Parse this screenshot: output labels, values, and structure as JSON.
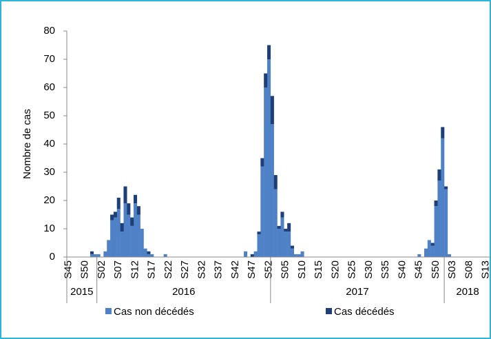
{
  "chart_data": {
    "type": "stacked_bar",
    "ylabel": "Nombre de cas",
    "ylim": [
      0,
      80
    ],
    "yticks": [
      0,
      10,
      20,
      30,
      40,
      50,
      60,
      70,
      80
    ],
    "categories": [
      "S45",
      null,
      null,
      null,
      null,
      "S50",
      null,
      null,
      null,
      null,
      "S02",
      null,
      null,
      null,
      null,
      "S07",
      null,
      null,
      null,
      null,
      "S12",
      null,
      null,
      null,
      null,
      "S17",
      null,
      null,
      null,
      null,
      "S22",
      null,
      null,
      null,
      null,
      "S27",
      null,
      null,
      null,
      null,
      "S32",
      null,
      null,
      null,
      null,
      "S37",
      null,
      null,
      null,
      null,
      "S42",
      null,
      null,
      null,
      null,
      "S47",
      null,
      null,
      null,
      null,
      "S52",
      null,
      null,
      null,
      null,
      "S05",
      null,
      null,
      null,
      null,
      "S10",
      null,
      null,
      null,
      null,
      "S15",
      null,
      null,
      null,
      null,
      "S20",
      null,
      null,
      null,
      null,
      "S25",
      null,
      null,
      null,
      null,
      "S30",
      null,
      null,
      null,
      null,
      "S35",
      null,
      null,
      null,
      null,
      "S40",
      null,
      null,
      null,
      null,
      "S45",
      null,
      null,
      null,
      null,
      "S50",
      null,
      null,
      null,
      null,
      "S03",
      null,
      null,
      null,
      null,
      "S08",
      null,
      null,
      null,
      null,
      "S13",
      null
    ],
    "groups": [
      {
        "name": "2015",
        "size": 9
      },
      {
        "name": "2016",
        "size": 52
      },
      {
        "name": "2017",
        "size": 52
      },
      {
        "name": "2018",
        "size": 14
      }
    ],
    "series": [
      {
        "name": "Cas non décédés",
        "color": "#4f81c7",
        "values": [
          0,
          0,
          0,
          0,
          0,
          0,
          0,
          1,
          1,
          1,
          0,
          2,
          6,
          13,
          14,
          17,
          9,
          19,
          15,
          11,
          19,
          15,
          10,
          3,
          1,
          1,
          0,
          0,
          0,
          1,
          0,
          0,
          0,
          0,
          0,
          0,
          0,
          0,
          0,
          0,
          0,
          0,
          0,
          0,
          0,
          0,
          0,
          0,
          0,
          0,
          0,
          0,
          0,
          2,
          0,
          0,
          2,
          8,
          32,
          60,
          70,
          47,
          24,
          10,
          14,
          9,
          9,
          3,
          1,
          1,
          2,
          0,
          0,
          0,
          0,
          0,
          0,
          0,
          0,
          0,
          0,
          0,
          0,
          0,
          0,
          0,
          0,
          0,
          0,
          0,
          0,
          0,
          0,
          0,
          0,
          0,
          0,
          0,
          0,
          0,
          0,
          0,
          0,
          0,
          0,
          1,
          0,
          3,
          6,
          4,
          18,
          27,
          42,
          24,
          1,
          0,
          0,
          0,
          0,
          0,
          0,
          0,
          0,
          0,
          0,
          0,
          0
        ]
      },
      {
        "name": "Cas décédés",
        "color": "#1f3f78",
        "values": [
          0,
          0,
          0,
          0,
          0,
          0,
          0,
          1,
          0,
          0,
          0,
          0,
          0,
          2,
          2,
          4,
          3,
          6,
          4,
          3,
          3,
          3,
          0,
          0,
          1,
          0,
          0,
          0,
          0,
          0,
          0,
          0,
          0,
          0,
          0,
          0,
          0,
          0,
          0,
          0,
          0,
          0,
          0,
          0,
          0,
          0,
          0,
          0,
          0,
          0,
          0,
          0,
          0,
          0,
          0,
          1,
          0,
          1,
          3,
          5,
          5,
          10,
          5,
          1,
          2,
          1,
          3,
          1,
          0,
          0,
          0,
          0,
          0,
          0,
          0,
          0,
          0,
          0,
          0,
          0,
          0,
          0,
          0,
          0,
          0,
          0,
          0,
          0,
          0,
          0,
          0,
          0,
          0,
          0,
          0,
          0,
          0,
          0,
          0,
          0,
          0,
          0,
          0,
          0,
          0,
          0,
          0,
          0,
          0,
          1,
          2,
          4,
          4,
          1,
          0,
          0,
          0,
          0,
          0,
          0,
          0,
          0,
          0,
          0,
          0,
          0,
          0
        ]
      }
    ]
  }
}
